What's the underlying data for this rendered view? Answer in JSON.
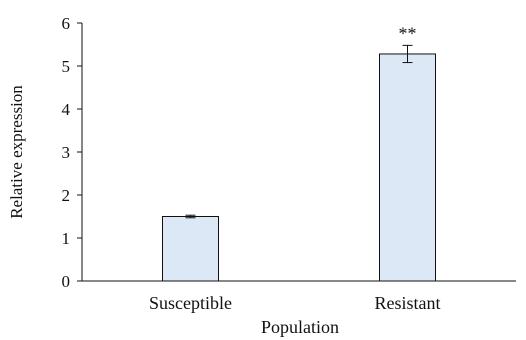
{
  "chart_data": {
    "type": "bar",
    "categories": [
      "Susceptible",
      "Resistant"
    ],
    "values": [
      1.5,
      5.28
    ],
    "errors": [
      0.03,
      0.2
    ],
    "annotations": [
      "",
      "**"
    ],
    "xlabel": "Population",
    "ylabel": "Relative expression",
    "ylim": [
      0,
      6
    ],
    "yticks": [
      "0",
      "1",
      "2",
      "3",
      "4",
      "5",
      "6"
    ],
    "grid": false,
    "bar_color": "#dce8f6",
    "bar_edge_color": "#111111"
  }
}
